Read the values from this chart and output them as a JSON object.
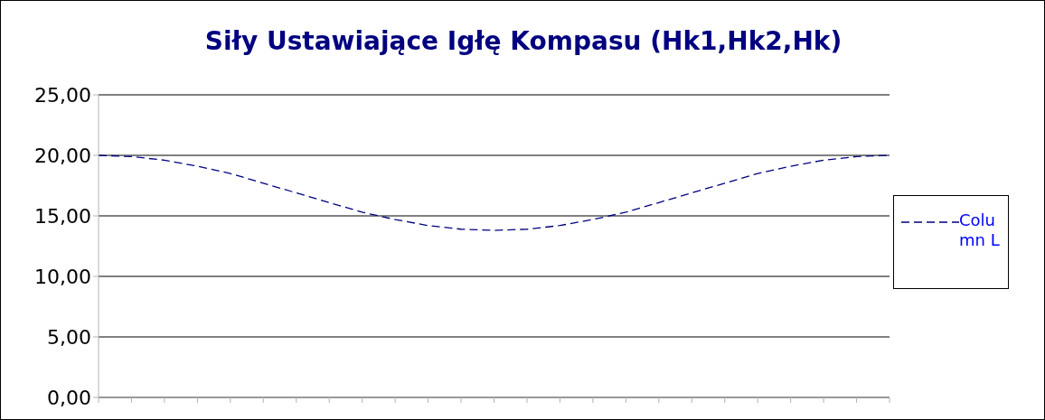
{
  "chart_data": {
    "type": "line",
    "title": "Siły Ustawiające Igłę Kompasu (Hk1,Hk2,Hk)",
    "categories": [
      null,
      null,
      null,
      null,
      null,
      null,
      null,
      null,
      null,
      null,
      null,
      null,
      null,
      null,
      null,
      null,
      null,
      null,
      null,
      null,
      null,
      null,
      null,
      null,
      null
    ],
    "series": [
      {
        "name": "Column L",
        "color": "#000080",
        "values": [
          20.0,
          19.9,
          19.6,
          19.1,
          18.5,
          17.7,
          16.9,
          16.1,
          15.3,
          14.7,
          14.2,
          13.9,
          13.8,
          13.9,
          14.2,
          14.7,
          15.3,
          16.1,
          16.9,
          17.7,
          18.5,
          19.1,
          19.6,
          19.9,
          20.0
        ]
      }
    ],
    "ylim": [
      0,
      25
    ],
    "yticks": [
      {
        "value": 0,
        "label": "0,00"
      },
      {
        "value": 5,
        "label": "5,00"
      },
      {
        "value": 10,
        "label": "10,00"
      },
      {
        "value": 15,
        "label": "15,00"
      },
      {
        "value": 20,
        "label": "20,00"
      },
      {
        "value": 25,
        "label": "25,00"
      }
    ],
    "grid": "y",
    "legend": "right",
    "tick_labels": "y",
    "line_style": "dashed",
    "marker": "none"
  }
}
